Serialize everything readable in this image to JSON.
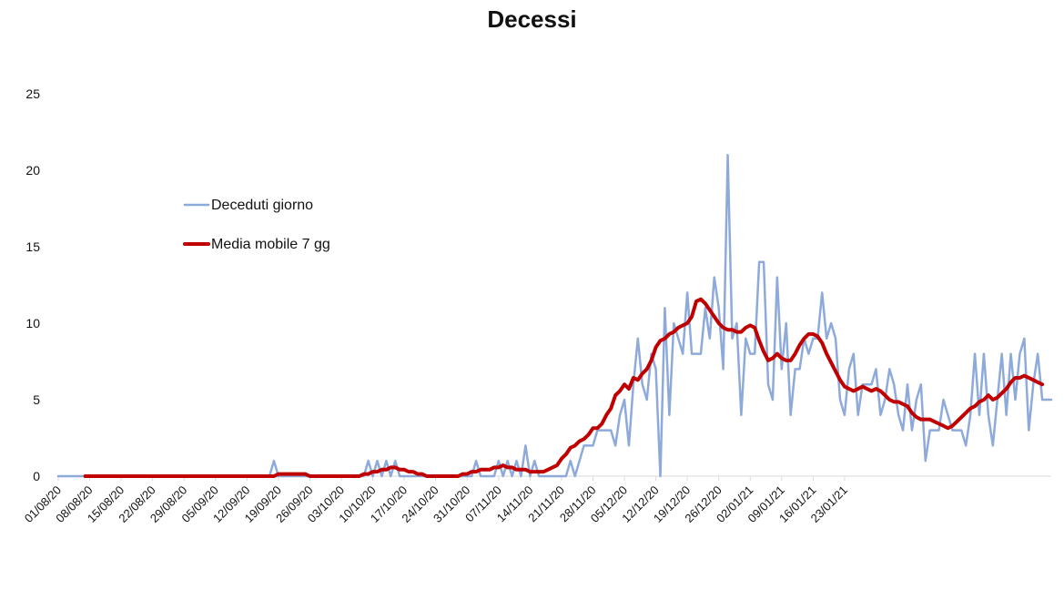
{
  "chart_data": {
    "type": "line",
    "title": "Decessi",
    "xlabel": "",
    "ylabel": "",
    "ylim": [
      0,
      25
    ],
    "yticks": [
      0,
      5,
      10,
      15,
      20,
      25
    ],
    "grid": false,
    "legend_position": "upper-left",
    "x_tick_labels": [
      "01/08/20",
      "08/08/20",
      "15/08/20",
      "22/08/20",
      "29/08/20",
      "05/09/20",
      "12/09/20",
      "19/09/20",
      "26/09/20",
      "03/10/20",
      "10/10/20",
      "17/10/20",
      "24/10/20",
      "31/10/20",
      "07/11/20",
      "14/11/20",
      "21/11/20",
      "28/11/20",
      "05/12/20",
      "12/12/20",
      "19/12/20",
      "26/12/20",
      "02/01/21",
      "09/01/21",
      "16/01/21",
      "23/01/21"
    ],
    "x_start": "01/08/20",
    "series": [
      {
        "name": "Deceduti giorno",
        "color": "#8eaadb",
        "values": [
          0,
          0,
          0,
          0,
          0,
          0,
          0,
          0,
          0,
          0,
          0,
          0,
          0,
          0,
          0,
          0,
          0,
          0,
          0,
          0,
          0,
          0,
          0,
          0,
          0,
          0,
          0,
          0,
          0,
          0,
          0,
          0,
          0,
          0,
          0,
          0,
          0,
          0,
          0,
          0,
          0,
          0,
          0,
          0,
          0,
          0,
          0,
          0,
          1,
          0,
          0,
          0,
          0,
          0,
          0,
          0,
          0,
          0,
          0,
          0,
          0,
          0,
          0,
          0,
          0,
          0,
          0,
          0,
          0,
          1,
          0,
          1,
          0,
          1,
          0,
          1,
          0,
          0,
          0,
          0,
          0,
          0,
          0,
          0,
          0,
          0,
          0,
          0,
          0,
          0,
          0,
          0,
          0,
          1,
          0,
          0,
          0,
          0,
          1,
          0,
          1,
          0,
          1,
          0,
          2,
          0,
          1,
          0,
          0,
          0,
          0,
          0,
          0,
          0,
          1,
          0,
          1,
          2,
          2,
          2,
          3,
          3,
          3,
          3,
          2,
          4,
          5,
          2,
          6,
          9,
          6,
          5,
          8,
          7,
          0,
          11,
          4,
          10,
          9,
          8,
          12,
          8,
          8,
          8,
          11,
          9,
          13,
          11,
          7,
          21,
          9,
          10,
          4,
          9,
          8,
          8,
          14,
          14,
          6,
          5,
          13,
          7,
          10,
          4,
          7,
          7,
          9,
          8,
          9,
          9,
          12,
          9,
          10,
          9,
          5,
          4,
          7,
          8,
          4,
          6,
          6,
          6,
          7,
          4,
          5,
          7,
          6,
          4,
          3,
          6,
          3,
          5,
          6,
          1,
          3,
          3,
          3,
          5,
          4,
          3,
          3,
          3,
          2,
          4,
          8,
          4,
          8,
          4,
          2,
          5,
          8,
          4,
          8,
          5,
          8,
          9,
          3,
          6,
          8,
          5,
          5,
          5
        ],
        "note_values": "daily deaths from 01/08/20, one value per day"
      },
      {
        "name": "Media mobile 7 gg",
        "color": "#c00000",
        "start_index": 6,
        "values": [
          0,
          0,
          0,
          0,
          0,
          0,
          0,
          0,
          0,
          0,
          0,
          0,
          0,
          0,
          0,
          0,
          0,
          0,
          0,
          0,
          0,
          0,
          0,
          0,
          0,
          0,
          0,
          0,
          0,
          0,
          0,
          0,
          0,
          0,
          0,
          0,
          0,
          0,
          0,
          0,
          0,
          0,
          0,
          0.14,
          0.14,
          0.14,
          0.14,
          0.14,
          0.14,
          0.14,
          0,
          0,
          0,
          0,
          0,
          0,
          0,
          0,
          0,
          0,
          0,
          0,
          0.14,
          0.14,
          0.29,
          0.29,
          0.43,
          0.43,
          0.57,
          0.57,
          0.43,
          0.43,
          0.29,
          0.29,
          0.14,
          0.14,
          0,
          0,
          0,
          0,
          0,
          0,
          0,
          0,
          0.14,
          0.14,
          0.29,
          0.29,
          0.43,
          0.43,
          0.43,
          0.57,
          0.57,
          0.71,
          0.57,
          0.57,
          0.43,
          0.43,
          0.43,
          0.29,
          0.29,
          0.29,
          0.29,
          0.43,
          0.57,
          0.71,
          1.14,
          1.43,
          1.86,
          2,
          2.29,
          2.43,
          2.71,
          3.14,
          3.14,
          3.43,
          4,
          4.43,
          5.29,
          5.57,
          6,
          5.71,
          6.43,
          6.29,
          6.71,
          7,
          7.57,
          8.43,
          8.86,
          9,
          9.29,
          9.43,
          9.71,
          9.86,
          10,
          10.43,
          11.43,
          11.57,
          11.29,
          10.86,
          10.43,
          10,
          9.71,
          9.57,
          9.57,
          9.43,
          9.43,
          9.71,
          9.86,
          9.71,
          8.86,
          8.14,
          7.57,
          7.71,
          8,
          7.71,
          7.57,
          7.57,
          8,
          8.57,
          9,
          9.29,
          9.29,
          9.14,
          8.71,
          8,
          7.43,
          6.86,
          6.29,
          5.86,
          5.71,
          5.57,
          5.71,
          5.86,
          5.71,
          5.57,
          5.71,
          5.57,
          5.29,
          5,
          4.86,
          4.86,
          4.71,
          4.57,
          4.14,
          3.86,
          3.71,
          3.71,
          3.71,
          3.57,
          3.43,
          3.29,
          3.14,
          3.29,
          3.57,
          3.86,
          4.14,
          4.43,
          4.57,
          4.86,
          5,
          5.29,
          5,
          5.14,
          5.43,
          5.71,
          6.14,
          6.43,
          6.43,
          6.57,
          6.43,
          6.29,
          6.14,
          6
        ]
      }
    ]
  }
}
